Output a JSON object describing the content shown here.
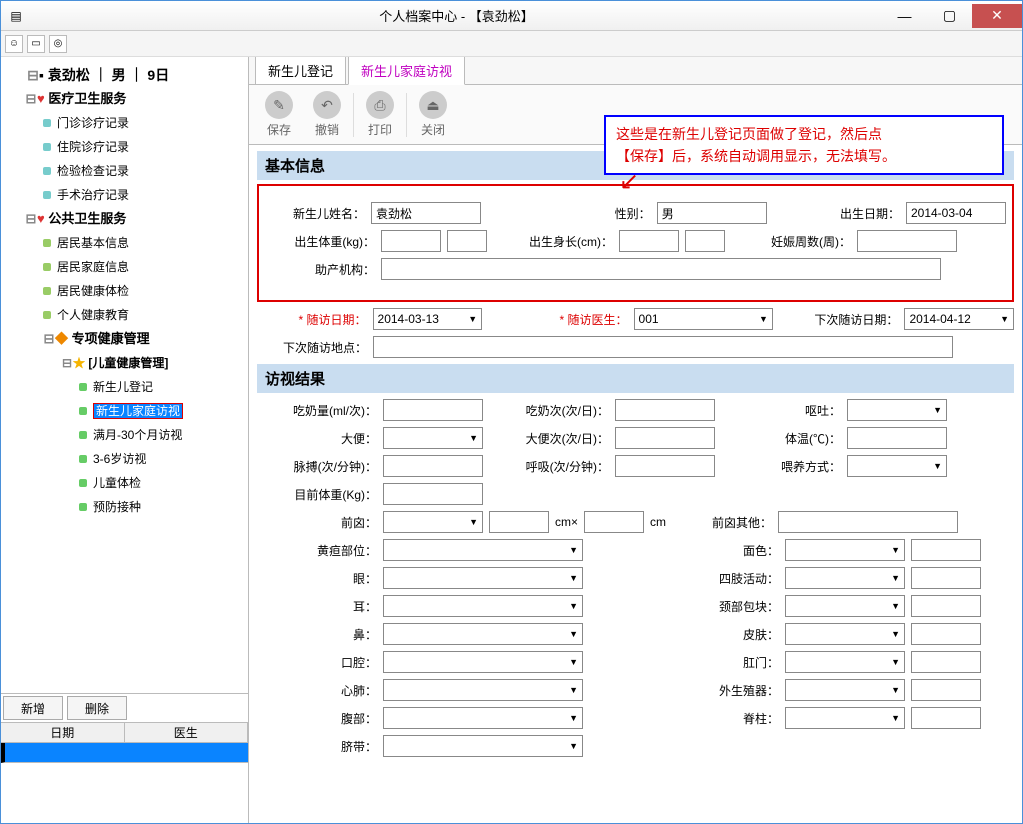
{
  "window": {
    "title": "个人档案中心 - 【袁劲松】"
  },
  "winBtns": {
    "min": "—",
    "max": "▢",
    "close": "✕"
  },
  "tree": {
    "root": "袁劲松 ｜ 男 ｜ 9日",
    "medical": {
      "label": "医疗卫生服务",
      "items": [
        "门诊诊疗记录",
        "住院诊疗记录",
        "检验检查记录",
        "手术治疗记录"
      ]
    },
    "public": {
      "label": "公共卫生服务",
      "items": [
        "居民基本信息",
        "居民家庭信息",
        "居民健康体检",
        "个人健康教育"
      ],
      "special": {
        "label": "专项健康管理",
        "child": {
          "label": "[儿童健康管理]",
          "items": [
            "新生儿登记",
            "新生儿家庭访视",
            "满月-30个月访视",
            "3-6岁访视",
            "儿童体检",
            "预防接种"
          ],
          "selectedIndex": 1
        }
      }
    }
  },
  "bottom": {
    "addBtn": "新增",
    "delBtn": "删除",
    "cols": [
      "日期",
      "医生"
    ]
  },
  "tabs": [
    "新生儿登记",
    "新生儿家庭访视"
  ],
  "activeTab": 1,
  "toolbar": [
    "保存",
    "撤销",
    "打印",
    "关闭"
  ],
  "note": {
    "line1": "这些是在新生儿登记页面做了登记，然后点",
    "line2": "【保存】后，系统自动调用显示，无法填写。"
  },
  "basic": {
    "title": "基本信息",
    "fields": {
      "name_lbl": "新生儿姓名：",
      "name": "袁劲松",
      "sex_lbl": "性别：",
      "sex": "男",
      "dob_lbl": "出生日期：",
      "dob": "2014-03-04",
      "weight_lbl": "出生体重(kg)：",
      "length_lbl": "出生身长(cm)：",
      "gest_lbl": "妊娠周数(周)：",
      "org_lbl": "助产机构："
    }
  },
  "followup": {
    "date_lbl": "随访日期：",
    "date": "2014-03-13",
    "doctor_lbl": "随访医生：",
    "doctor": "001",
    "next_lbl": "下次随访日期：",
    "next": "2014-04-12",
    "place_lbl": "下次随访地点："
  },
  "visit": {
    "title": "访视结果",
    "rows": [
      {
        "l1": "吃奶量(ml/次)：",
        "t1": "input",
        "l2": "吃奶次(次/日)：",
        "t2": "input",
        "l3": "呕吐：",
        "t3": "combo"
      },
      {
        "l1": "大便：",
        "t1": "combo",
        "l2": "大便次(次/日)：",
        "t2": "input",
        "l3": "体温(℃)：",
        "t3": "input"
      },
      {
        "l1": "脉搏(次/分钟)：",
        "t1": "input",
        "l2": "呼吸(次/分钟)：",
        "t2": "input",
        "l3": "喂养方式：",
        "t3": "combo"
      },
      {
        "l1": "目前体重(Kg)：",
        "t1": "input"
      }
    ],
    "qianxin_lbl": "前囟：",
    "qianxin_cm": "cm×",
    "qianxin_cm2": "cm",
    "qianxin_other_lbl": "前囟其他：",
    "pairs": [
      {
        "l1": "黄疸部位：",
        "l2": "面色："
      },
      {
        "l1": "眼：",
        "l2": "四肢活动："
      },
      {
        "l1": "耳：",
        "l2": "颈部包块："
      },
      {
        "l1": "鼻：",
        "l2": "皮肤："
      },
      {
        "l1": "口腔：",
        "l2": "肛门："
      },
      {
        "l1": "心肺：",
        "l2": "外生殖器："
      },
      {
        "l1": "腹部：",
        "l2": "脊柱："
      },
      {
        "l1": "脐带：",
        "l2": ""
      }
    ]
  }
}
